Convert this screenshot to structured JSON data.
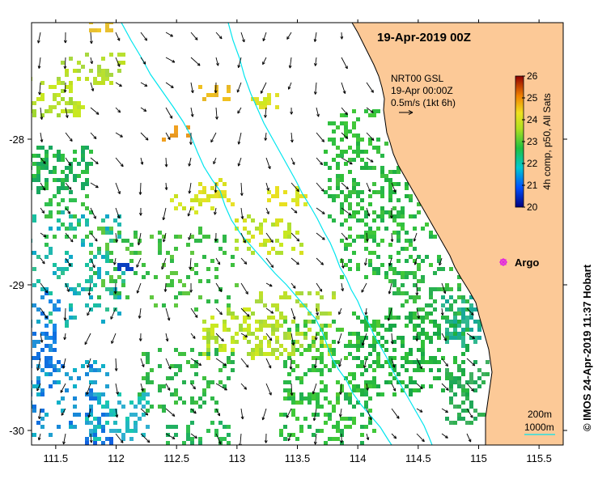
{
  "title": "19-Apr-2019 00Z",
  "product": {
    "line1": "NRT00 GSL",
    "line2": "19-Apr 00:00Z",
    "line3": "0.5m/s (1kt 6h)"
  },
  "colorbar": {
    "label": "4h comp, p50, All Sats",
    "ticks": [
      "20",
      "21",
      "22",
      "23",
      "24",
      "25",
      "26"
    ],
    "min": 20,
    "max": 26
  },
  "argo": {
    "label": "Argo",
    "color": "#e020e0"
  },
  "isobaths": {
    "shallow_label": "200m",
    "deep_label": "1000m",
    "color": "#00e5ee"
  },
  "credit": "© IMOS 24-Apr-2019 11:37 Hobart",
  "colors": {
    "land": "#fcc997",
    "coast": "#000000",
    "isobath": "#00e5ee"
  },
  "axes": {
    "x_ticks": [
      "111.5",
      "112",
      "112.5",
      "113",
      "113.5",
      "114",
      "114.5",
      "115",
      "115.5"
    ],
    "y_ticks": [
      "-28",
      "-29",
      "-30"
    ],
    "lon_range": [
      111.3,
      115.7
    ],
    "lat_range": [
      -27.2,
      -30.1
    ]
  }
}
